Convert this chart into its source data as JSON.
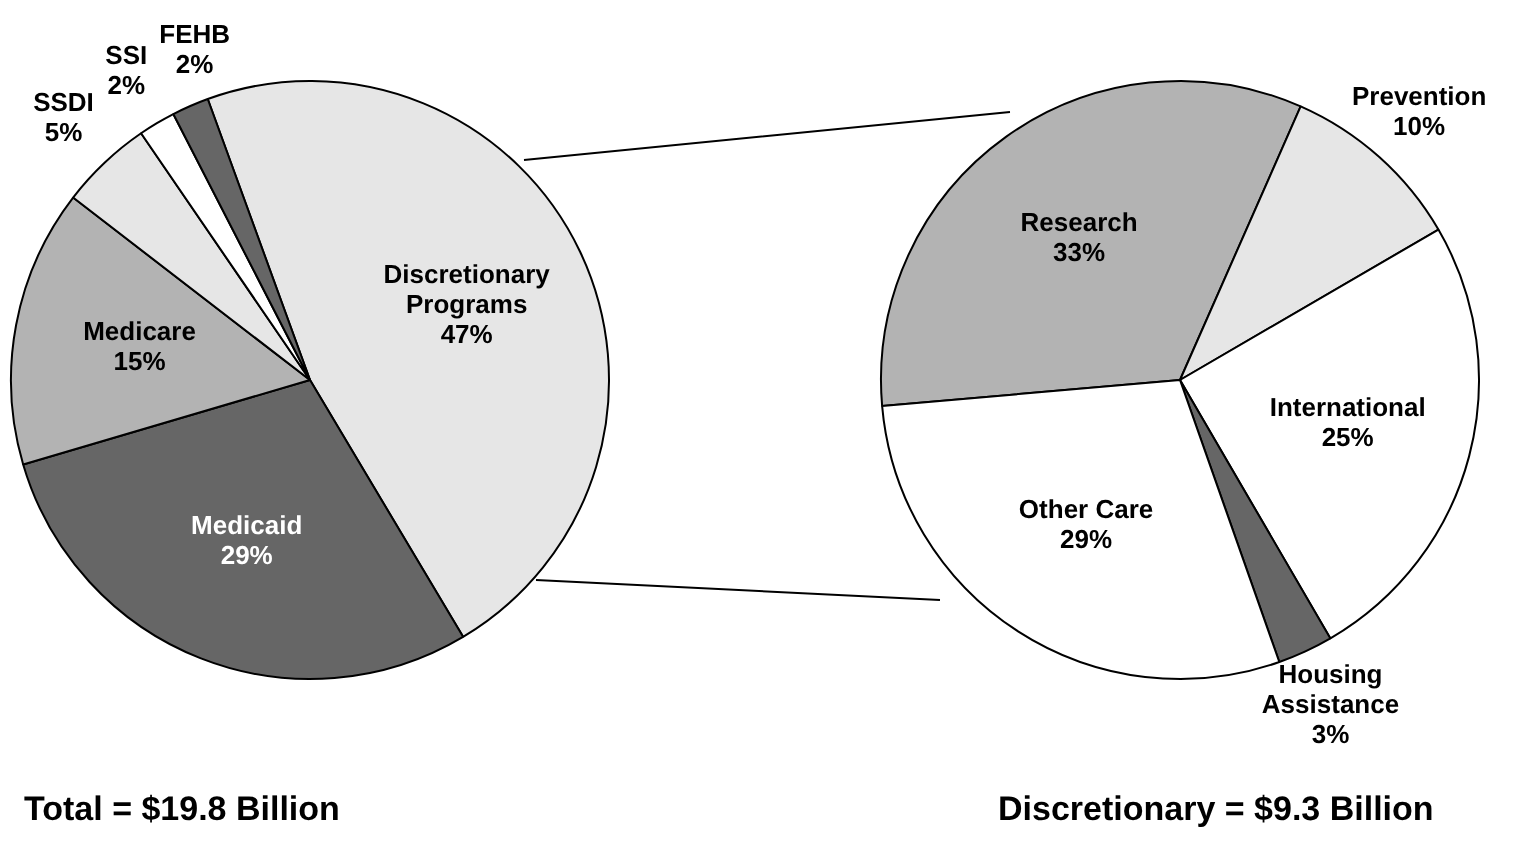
{
  "chart_data": [
    {
      "type": "pie",
      "title": "Total = $19.8 Billion",
      "categories": [
        "Discretionary Programs",
        "Medicaid",
        "Medicare",
        "SSDI",
        "SSI",
        "FEHB"
      ],
      "values": [
        47,
        29,
        15,
        5,
        2,
        2
      ],
      "colors": [
        "#e6e6e6",
        "#666666",
        "#b3b3b3",
        "#e6e6e6",
        "#ffffff",
        "#666666"
      ],
      "value_labels": [
        "47%",
        "29%",
        "15%",
        "5%",
        "2%",
        "2%"
      ]
    },
    {
      "type": "pie",
      "title": "Discretionary = $9.3 Billion",
      "categories": [
        "Research",
        "Prevention",
        "International",
        "Housing Assistance",
        "Other Care"
      ],
      "values": [
        33,
        10,
        25,
        3,
        29
      ],
      "colors": [
        "#b3b3b3",
        "#e6e6e6",
        "#ffffff",
        "#666666",
        "#ffffff"
      ],
      "value_labels": [
        "33%",
        "10%",
        "25%",
        "3%",
        "29%"
      ]
    }
  ]
}
